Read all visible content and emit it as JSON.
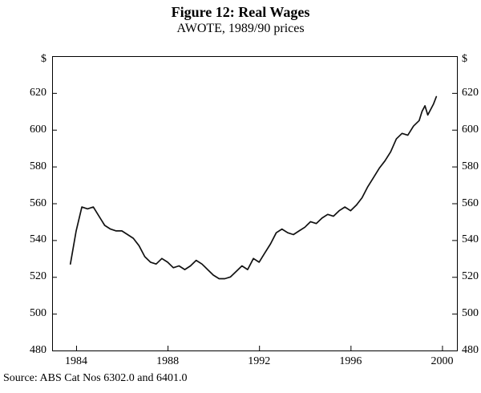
{
  "chart_data": {
    "type": "line",
    "title": "Figure 12: Real Wages",
    "subtitle": "AWOTE, 1989/90 prices",
    "unit": "$",
    "source": "Source: ABS Cat Nos 6302.0 and 6401.0",
    "xlim": [
      1982.95,
      2000.65
    ],
    "ylim": [
      480,
      640
    ],
    "x_ticks": [
      1984,
      1988,
      1992,
      1996,
      2000
    ],
    "y_ticks": [
      480,
      500,
      520,
      540,
      560,
      580,
      600,
      620
    ],
    "grid": false,
    "legend": "none",
    "line_color": "#111111",
    "series": [
      {
        "name": "Real AWOTE (1989/90 prices)",
        "points": [
          [
            1983.75,
            527
          ],
          [
            1984.0,
            545
          ],
          [
            1984.25,
            558
          ],
          [
            1984.5,
            557
          ],
          [
            1984.75,
            558
          ],
          [
            1985.0,
            553
          ],
          [
            1985.25,
            548
          ],
          [
            1985.5,
            546
          ],
          [
            1985.75,
            545
          ],
          [
            1986.0,
            545
          ],
          [
            1986.25,
            543
          ],
          [
            1986.5,
            541
          ],
          [
            1986.75,
            537
          ],
          [
            1987.0,
            531
          ],
          [
            1987.25,
            528
          ],
          [
            1987.5,
            527
          ],
          [
            1987.75,
            530
          ],
          [
            1988.0,
            528
          ],
          [
            1988.25,
            525
          ],
          [
            1988.5,
            526
          ],
          [
            1988.75,
            524
          ],
          [
            1989.0,
            526
          ],
          [
            1989.25,
            529
          ],
          [
            1989.5,
            527
          ],
          [
            1989.75,
            524
          ],
          [
            1990.0,
            521
          ],
          [
            1990.25,
            519
          ],
          [
            1990.5,
            519
          ],
          [
            1990.75,
            520
          ],
          [
            1991.0,
            523
          ],
          [
            1991.25,
            526
          ],
          [
            1991.5,
            524
          ],
          [
            1991.75,
            530
          ],
          [
            1992.0,
            528
          ],
          [
            1992.25,
            533
          ],
          [
            1992.5,
            538
          ],
          [
            1992.75,
            544
          ],
          [
            1993.0,
            546
          ],
          [
            1993.25,
            544
          ],
          [
            1993.5,
            543
          ],
          [
            1993.75,
            545
          ],
          [
            1994.0,
            547
          ],
          [
            1994.25,
            550
          ],
          [
            1994.5,
            549
          ],
          [
            1994.75,
            552
          ],
          [
            1995.0,
            554
          ],
          [
            1995.25,
            553
          ],
          [
            1995.5,
            556
          ],
          [
            1995.75,
            558
          ],
          [
            1996.0,
            556
          ],
          [
            1996.25,
            559
          ],
          [
            1996.5,
            563
          ],
          [
            1996.75,
            569
          ],
          [
            1997.0,
            574
          ],
          [
            1997.25,
            579
          ],
          [
            1997.5,
            583
          ],
          [
            1997.75,
            588
          ],
          [
            1998.0,
            595
          ],
          [
            1998.25,
            598
          ],
          [
            1998.5,
            597
          ],
          [
            1998.75,
            602
          ],
          [
            1999.0,
            605
          ],
          [
            1999.125,
            610
          ],
          [
            1999.25,
            613
          ],
          [
            1999.375,
            608
          ],
          [
            1999.5,
            611
          ],
          [
            1999.625,
            614
          ],
          [
            1999.75,
            618
          ]
        ]
      }
    ]
  }
}
